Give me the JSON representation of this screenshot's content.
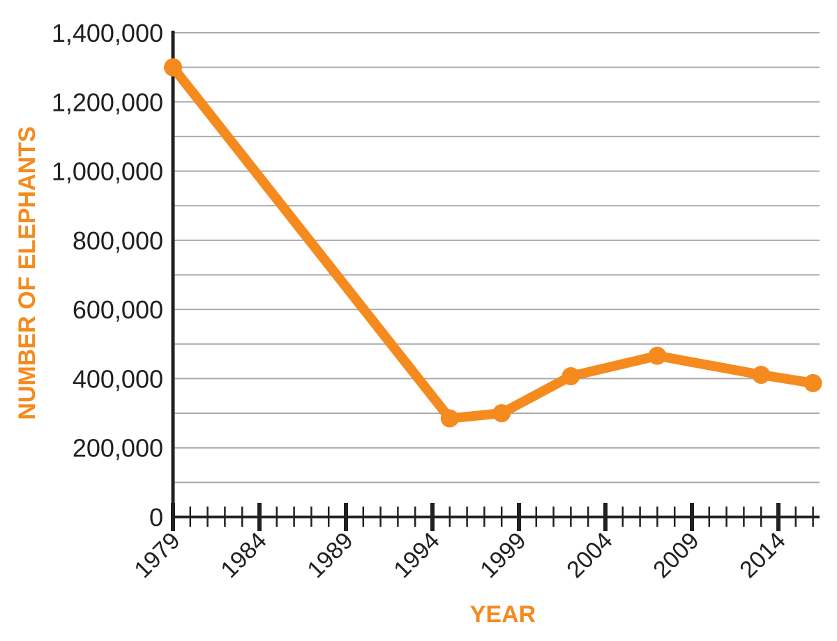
{
  "chart_data": {
    "type": "line",
    "title": "",
    "xlabel": "YEAR",
    "ylabel": "NUMBER OF ELEPHANTS",
    "xlim": [
      1979,
      2016.4
    ],
    "ylim": [
      0,
      1400000
    ],
    "grid": true,
    "x_ticks": [
      1979,
      1984,
      1989,
      1994,
      1999,
      2004,
      2009,
      2014
    ],
    "x_tick_labels": [
      "1979",
      "1984",
      "1989",
      "1994",
      "1999",
      "2004",
      "2009",
      "2014"
    ],
    "y_ticks": [
      0,
      200000,
      400000,
      600000,
      800000,
      1000000,
      1200000,
      1400000
    ],
    "y_tick_labels": [
      "0",
      "200,000",
      "400,000",
      "600,000",
      "800,000",
      "1,000,000",
      "1,200,000",
      "1,400,000"
    ],
    "series": [
      {
        "name": "Elephants",
        "color": "#F58A1F",
        "x": [
          1979,
          1995,
          1998,
          2002,
          2007,
          2013,
          2016
        ],
        "values": [
          1300000,
          285000,
          300000,
          407000,
          466000,
          411000,
          387000
        ]
      }
    ],
    "colors": {
      "axis": "#231F20",
      "grid": "#A7A9AC",
      "label": "#F58A1F",
      "tick_text": "#231F20"
    }
  }
}
